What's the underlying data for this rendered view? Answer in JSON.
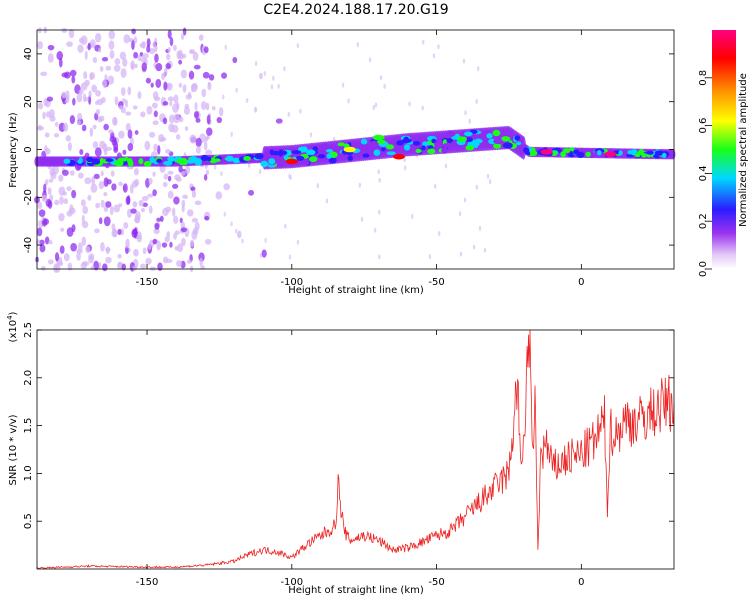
{
  "title": "C2E4.2024.188.17.20.G19",
  "colors": {
    "snr_line": "#ee2222",
    "colormap": [
      "#ffffff",
      "#d6b6f5",
      "#8f2cf0",
      "#2a1cff",
      "#00d8ff",
      "#19ff19",
      "#ffff00",
      "#ff8c00",
      "#ff0000",
      "#ff0080"
    ]
  },
  "chart_data": [
    {
      "type": "heatmap",
      "name": "spectrogram",
      "title": "C2E4.2024.188.17.20.G19",
      "xlabel": "Height of straight line (km)",
      "ylabel": "Frequency (Hz)",
      "xlim": [
        -188,
        32
      ],
      "ylim": [
        -50,
        50
      ],
      "xticks": [
        -150,
        -100,
        -50,
        0
      ],
      "yticks": [
        -40,
        -20,
        0,
        20,
        40
      ],
      "colorbar": {
        "label": "Normalized spectral amplitude",
        "range": [
          0,
          1
        ],
        "ticks": [
          "0.0",
          "0.2",
          "0.4",
          "0.6",
          "0.8"
        ]
      },
      "band": {
        "description_points_x": [
          -185,
          -140,
          -100,
          -60,
          -25,
          -18,
          30
        ],
        "center_freq_hz": [
          -5,
          -5,
          -3,
          2,
          5,
          -1,
          -2
        ],
        "strong_features": [
          {
            "x": -63,
            "freq": -3,
            "amp": 0.9
          },
          {
            "x": -100,
            "freq": -5,
            "amp": 0.85
          },
          {
            "x": -12,
            "freq": -1,
            "amp": 0.95
          },
          {
            "x": 10,
            "freq": -2,
            "amp": 0.95
          },
          {
            "x": -80,
            "freq": 0,
            "amp": 0.7
          },
          {
            "x": -70,
            "freq": 5,
            "amp": 0.6
          }
        ]
      }
    },
    {
      "type": "line",
      "name": "snr",
      "xlabel": "Height of straight line (km)",
      "ylabel": "SNR (10 * v/v)",
      "y_multiplier": "(x10",
      "y_multiplier_exp": "4",
      "y_multiplier_close": ")",
      "xlim": [
        -188,
        32
      ],
      "ylim": [
        0,
        2.5
      ],
      "xticks": [
        -150,
        -100,
        -50,
        0
      ],
      "yticks": [
        0.5,
        1.0,
        1.5,
        2.0,
        2.5
      ],
      "ytick_labels": [
        "0.5",
        "1.0",
        "1.5",
        "2.0",
        "2.5"
      ],
      "series": [
        {
          "x": [
            -188,
            -170,
            -150,
            -140,
            -130,
            -120,
            -115,
            -110,
            -105,
            -100,
            -95,
            -90,
            -85,
            -84,
            -82,
            -80,
            -75,
            -70,
            -65,
            -60,
            -55,
            -50,
            -45,
            -40,
            -35,
            -30,
            -25,
            -22,
            -21,
            -20,
            -18,
            -17,
            -16,
            -15,
            -14,
            -12,
            -10,
            -5,
            0,
            5,
            8,
            9,
            10,
            12,
            15,
            20,
            25,
            30,
            32
          ],
          "values": [
            0.01,
            0.03,
            0.02,
            0.02,
            0.04,
            0.08,
            0.15,
            0.2,
            0.18,
            0.12,
            0.25,
            0.35,
            0.45,
            0.88,
            0.4,
            0.3,
            0.35,
            0.3,
            0.2,
            0.22,
            0.28,
            0.35,
            0.4,
            0.55,
            0.7,
            0.85,
            1.0,
            2.0,
            1.0,
            1.3,
            2.5,
            1.2,
            1.7,
            0.2,
            1.2,
            1.3,
            1.05,
            1.15,
            1.2,
            1.35,
            1.55,
            0.65,
            1.45,
            1.4,
            1.55,
            1.55,
            1.65,
            1.75,
            1.72
          ]
        }
      ]
    }
  ]
}
